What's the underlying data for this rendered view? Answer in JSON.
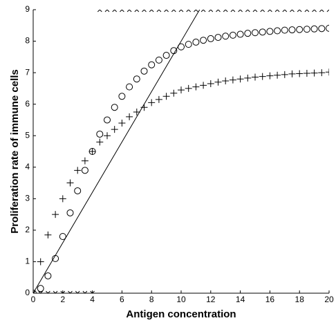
{
  "chart_data": {
    "type": "scatter",
    "x_label": "Antigen concentration",
    "y_label": "Proliferation rate of immune cells",
    "xlim": [
      0,
      20
    ],
    "xticks": [
      0,
      2,
      4,
      6,
      8,
      10,
      12,
      14,
      16,
      18,
      20
    ],
    "ylim": [
      0,
      9
    ],
    "yticks": [
      0,
      1,
      2,
      3,
      4,
      5,
      6,
      7,
      8,
      9
    ],
    "series": [
      {
        "marker": "x",
        "color": "#000000",
        "x": [
          0,
          0.5,
          1,
          1.5,
          2,
          2.5,
          3,
          3.5,
          4,
          4.5,
          5,
          5.5,
          6,
          6.5,
          7,
          7.5,
          8,
          8.5,
          9,
          9.5,
          10,
          10.5,
          11,
          11.5,
          12,
          12.5,
          13,
          13.5,
          14,
          14.5,
          15,
          15.5,
          16,
          16.5,
          17,
          17.5,
          18,
          18.5,
          19,
          19.5,
          20
        ],
        "values": [
          0,
          0,
          0,
          0,
          0,
          0,
          0,
          0,
          0,
          9,
          9,
          9,
          9,
          9,
          9,
          9,
          9,
          9,
          9,
          9,
          9,
          9,
          9,
          9,
          9,
          9,
          9,
          9,
          9,
          9,
          9,
          9,
          9,
          9,
          9,
          9,
          9,
          9,
          9,
          9,
          9
        ]
      },
      {
        "marker": "o",
        "color": "#000000",
        "x": [
          0,
          0.5,
          1,
          1.5,
          2,
          2.5,
          3,
          3.5,
          4,
          4.5,
          5,
          5.5,
          6,
          6.5,
          7,
          7.5,
          8,
          8.5,
          9,
          9.5,
          10,
          10.5,
          11,
          11.5,
          12,
          12.5,
          13,
          13.5,
          14,
          14.5,
          15,
          15.5,
          16,
          16.5,
          17,
          17.5,
          18,
          18.5,
          19,
          19.5,
          20
        ],
        "values": [
          0,
          0.15,
          0.55,
          1.1,
          1.8,
          2.55,
          3.25,
          3.9,
          4.5,
          5.05,
          5.5,
          5.9,
          6.25,
          6.55,
          6.8,
          7.05,
          7.25,
          7.4,
          7.55,
          7.7,
          7.82,
          7.9,
          7.97,
          8.03,
          8.08,
          8.12,
          8.16,
          8.19,
          8.22,
          8.25,
          8.27,
          8.29,
          8.31,
          8.33,
          8.35,
          8.36,
          8.37,
          8.38,
          8.39,
          8.4,
          8.41
        ]
      },
      {
        "marker": "+",
        "color": "#000000",
        "x": [
          0,
          0.5,
          1,
          1.5,
          2,
          2.5,
          3,
          3.5,
          4,
          4.5,
          5,
          5.5,
          6,
          6.5,
          7,
          7.5,
          8,
          8.5,
          9,
          9.5,
          10,
          10.5,
          11,
          11.5,
          12,
          12.5,
          13,
          13.5,
          14,
          14.5,
          15,
          15.5,
          16,
          16.5,
          17,
          17.5,
          18,
          18.5,
          19,
          19.5,
          20
        ],
        "values": [
          0,
          1,
          1.85,
          2.5,
          3,
          3.5,
          3.9,
          4.2,
          4.5,
          4.8,
          5,
          5.2,
          5.4,
          5.6,
          5.75,
          5.9,
          6.05,
          6.15,
          6.25,
          6.35,
          6.45,
          6.5,
          6.55,
          6.6,
          6.65,
          6.7,
          6.74,
          6.77,
          6.8,
          6.83,
          6.86,
          6.88,
          6.9,
          6.92,
          6.94,
          6.96,
          6.97,
          6.98,
          6.99,
          7.0,
          7.02
        ]
      },
      {
        "marker": "line",
        "color": "#000000",
        "x": [
          0,
          11.25
        ],
        "values": [
          0,
          9
        ]
      }
    ]
  }
}
